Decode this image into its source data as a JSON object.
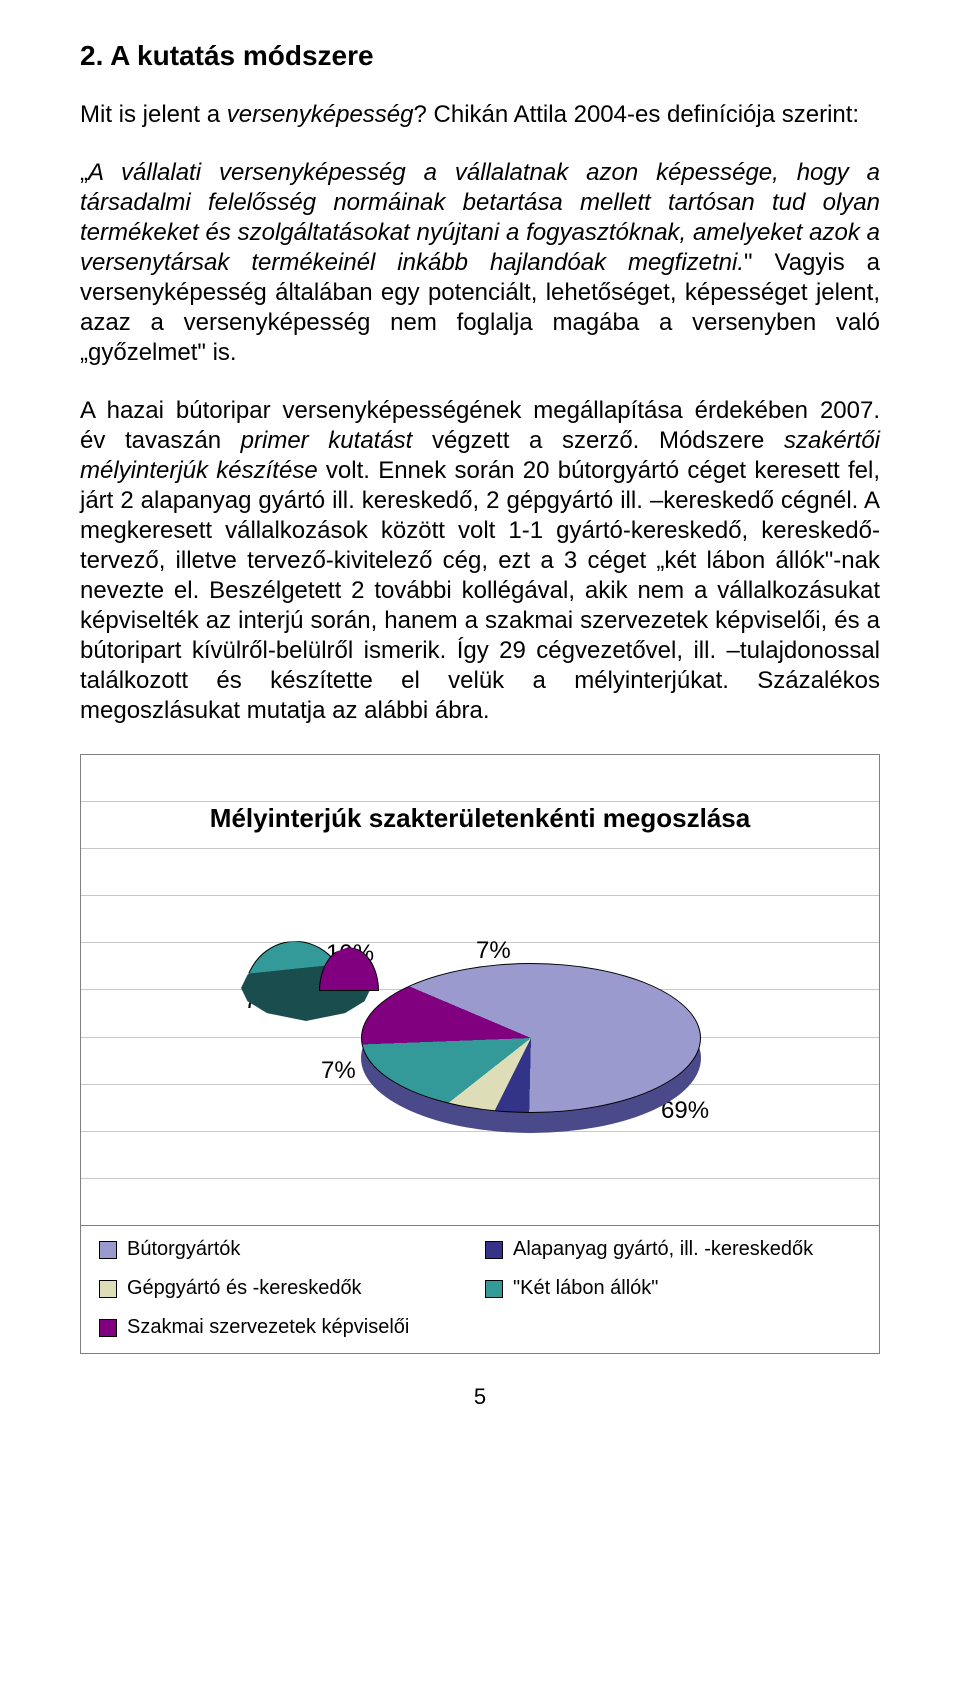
{
  "heading": "2. A kutatás módszere",
  "intro_text": "Mit is jelent a ",
  "intro_italic": "versenyképesség",
  "intro_end": "? Chikán Attila 2004-es definíciója szerint:",
  "quote_italic_1": "A vállalati versenyképesség a vállalatnak azon képessége, hogy a társadalmi felelősség normáinak betartása mellett tartósan tud olyan termékeket és szolgáltatásokat nyújtani a fogyasztóknak, amelyeket azok a versenytársak termékeinél inkább hajlandóak megfizetni.",
  "quote_plain": " Vagyis a versenyképesség általában egy potenciált, lehetőséget, képességet jelent, azaz a versenyképesség nem foglalja magába a versenyben való „győzelmet\" is.",
  "p3_a": "A hazai bútoripar versenyképességének megállapítása érdekében 2007. év tavaszán ",
  "p3_i1": "primer kutatást",
  "p3_b": " végzett a szerző. Módszere ",
  "p3_i2": "szakértői mélyinterjúk készítése",
  "p3_c": " volt. Ennek során 20 bútorgyártó céget keresett fel, járt 2 alapanyag gyártó ill. kereskedő, 2 gépgyártó ill. –kereskedő cégnél. A megkeresett vállalkozások között volt 1-1 gyártó-kereskedő, kereskedő-tervező, illetve tervező-kivitelező cég, ezt a 3 céget „két lábon állók\"-nak nevezte el. Beszélgetett 2 további kollégával, akik nem a vállalkozásukat képviselték az interjú során, hanem a szakmai szervezetek képviselői, és a bútoripart kívülről-belülről ismerik. Így 29 cégvezetővel, ill. –tulajdonossal találkozott és készítette el velük a mélyinterjúkat. Százalékos megoszlásukat mutatja az alábbi ábra.",
  "chart": {
    "type": "pie",
    "title": "Mélyinterjúk szakterületenkénti megoszlása",
    "title_fontsize": 26,
    "background_color": "#ffffff",
    "grid_color": "#c8c8c8",
    "frame_border_color": "#7f7f7f",
    "label_fontsize": 24,
    "labels": {
      "10": "10%",
      "7a": "7%",
      "7b": "7%",
      "7c": "7%",
      "69": "69%"
    },
    "slices": [
      {
        "name": "Bútorgyártók",
        "value": 69,
        "color": "#9a9acf"
      },
      {
        "name": "Alapanyag gyártó, ill. -kereskedők",
        "value": 7,
        "color": "#333388"
      },
      {
        "name": "Gépgyártó és -kereskedők",
        "value": 7,
        "color": "#ddddb8"
      },
      {
        "name": "\"Két lábon állók\"",
        "value": 10,
        "color": "#339999"
      },
      {
        "name": "Szakmai szervezetek képviselői",
        "value": 7,
        "color": "#800080"
      }
    ],
    "conic_start_deg": -67,
    "side_color": "#4a4a8a"
  },
  "legend": [
    {
      "label": "Bútorgyártók",
      "color": "#9a9acf"
    },
    {
      "label": "Alapanyag gyártó, ill. -kereskedők",
      "color": "#333388"
    },
    {
      "label": "Gépgyártó és -kereskedők",
      "color": "#ddddb8"
    },
    {
      "label": "\"Két lábon állók\"",
      "color": "#339999"
    },
    {
      "label": "Szakmai szervezetek képviselői",
      "color": "#800080"
    }
  ],
  "page_number": "5"
}
